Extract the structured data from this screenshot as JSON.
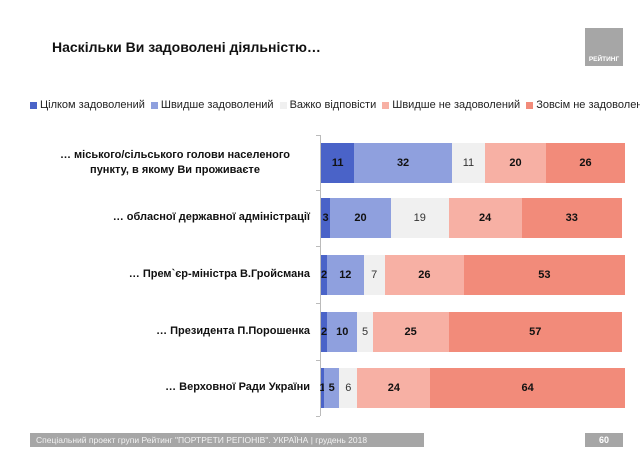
{
  "logo_text": "РЕЙТИНГ",
  "footer": {
    "text": "Спеціальний проект групи Рейтинг \"ПОРТРЕТИ РЕГІОНІВ\". УКРАЇНА | грудень 2018",
    "page": "60"
  },
  "chart_data": {
    "type": "bar",
    "orientation": "horizontal",
    "stacked": true,
    "title": "Наскільки Ви задоволені діяльністю…",
    "legend_position": "top",
    "categories": [
      "… міського/сільського голови населеного пункту, в якому Ви проживаєте",
      "… обласної державної адміністрації",
      "… Прем`єр-міністра В.Гройсмана",
      "… Президента П.Порошенка",
      "… Верховної Ради України"
    ],
    "series": [
      {
        "name": "Цілком задоволений",
        "color": "#4a63c8",
        "values": [
          11,
          3,
          2,
          2,
          1
        ]
      },
      {
        "name": "Швидше задоволений",
        "color": "#8fa0de",
        "values": [
          32,
          20,
          12,
          10,
          5
        ]
      },
      {
        "name": "Важко відповісти",
        "color": "#f0f0f0",
        "values": [
          11,
          19,
          7,
          5,
          6
        ]
      },
      {
        "name": "Швидше не задоволений",
        "color": "#f7b0a4",
        "values": [
          20,
          24,
          26,
          25,
          24
        ]
      },
      {
        "name": "Зовсім не задоволений",
        "color": "#f28b7a",
        "values": [
          26,
          33,
          53,
          57,
          64
        ]
      }
    ],
    "xlim": [
      0,
      100
    ],
    "grid": false
  }
}
